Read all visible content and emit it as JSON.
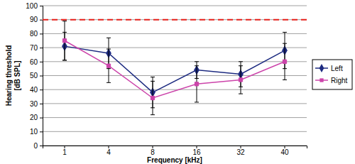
{
  "chart_data": {
    "type": "line",
    "x_label": "Frequency [kHz]",
    "y_label": [
      "Hearing threshold",
      "[dB SPL]"
    ],
    "categories": [
      "1",
      "4",
      "8",
      "16",
      "32",
      "40"
    ],
    "series": [
      {
        "name": "Left",
        "color": "#1c2a80",
        "marker": "diamond",
        "line_style": "solid",
        "values": [
          71,
          66,
          38,
          54,
          51,
          68
        ],
        "errors": [
          10,
          11,
          11,
          6,
          9,
          13
        ]
      },
      {
        "name": "Right",
        "color": "#cc44aa",
        "marker": "square",
        "line_style": "solid",
        "values": [
          75,
          57,
          34,
          44,
          47,
          60
        ],
        "errors": [
          14,
          12,
          12,
          13,
          10,
          13
        ]
      }
    ],
    "reference_lines": [
      {
        "value": 90,
        "color": "#e8211c",
        "line_style": "dashed"
      }
    ],
    "ylim": [
      0,
      100
    ],
    "yticks": [
      0,
      10,
      20,
      30,
      40,
      50,
      60,
      70,
      80,
      90,
      100
    ],
    "grid": true,
    "legend": "right"
  }
}
